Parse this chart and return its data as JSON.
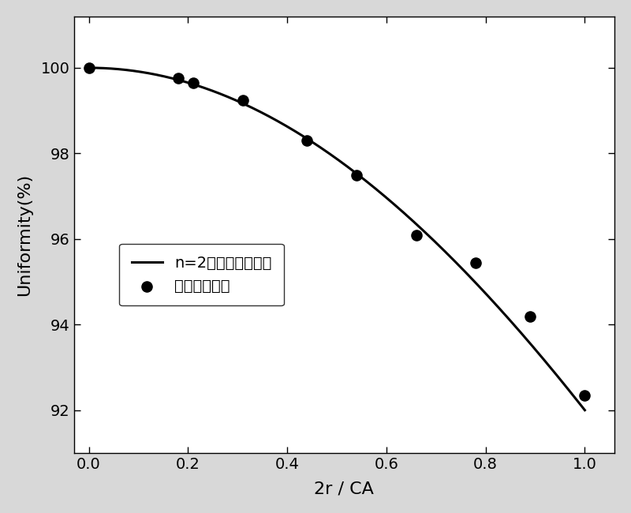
{
  "scatter_x": [
    0.0,
    0.18,
    0.21,
    0.31,
    0.44,
    0.54,
    0.66,
    0.78,
    0.89,
    1.0
  ],
  "scatter_y": [
    100.0,
    99.75,
    99.65,
    99.25,
    98.3,
    97.5,
    96.1,
    95.45,
    94.2,
    92.35
  ],
  "curve_label": "n=2时模拟厚度分布",
  "scatter_label": "实验厚度分布",
  "xlabel": "2r / CA",
  "ylabel": "Uniformity(%)",
  "xlim": [
    -0.03,
    1.06
  ],
  "ylim": [
    91.0,
    101.2
  ],
  "yticks": [
    92,
    94,
    96,
    98,
    100
  ],
  "xticks": [
    0.0,
    0.2,
    0.4,
    0.6,
    0.8,
    1.0
  ],
  "fig_bg": "#d8d8d8",
  "plot_bg": "#ffffff",
  "line_color": "#000000",
  "scatter_color": "#000000",
  "curve_a": 0.0869
}
